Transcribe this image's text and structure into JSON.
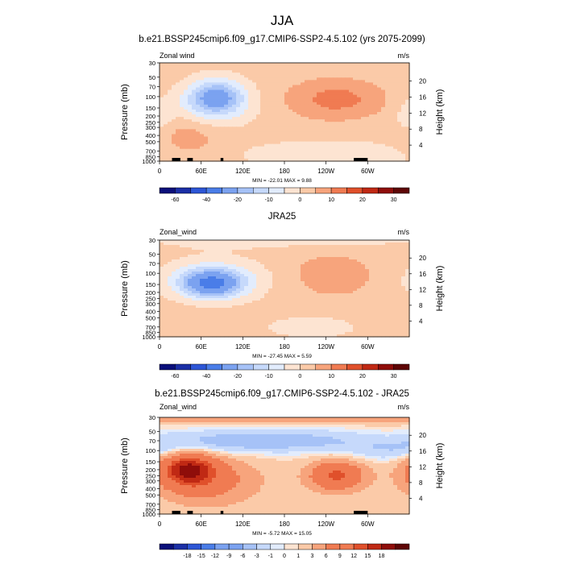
{
  "figure": {
    "title": "JJA"
  },
  "chart_data": [
    {
      "type": "heatmap",
      "title": "b.e21.BSSP245cmip6.f09_g17.CMIP6-SSP2-4.5.102 (yrs 2075-2099)",
      "left_label": "Zonal wind",
      "units": "m/s",
      "xlabel": "",
      "ylabel": "Pressure (mb)",
      "y2label": "Height (km)",
      "x_ticks": [
        "0",
        "60E",
        "120E",
        "180",
        "120W",
        "60W"
      ],
      "x_tick_values": [
        0,
        60,
        120,
        180,
        240,
        300
      ],
      "xlim": [
        0,
        360
      ],
      "y_ticks": [
        "30",
        "50",
        "70",
        "100",
        "150",
        "200",
        "250",
        "300",
        "400",
        "500",
        "700",
        "850",
        "1000"
      ],
      "y_tick_values": [
        30,
        50,
        70,
        100,
        150,
        200,
        250,
        300,
        400,
        500,
        700,
        850,
        1000
      ],
      "ylim": [
        1000,
        30
      ],
      "y_scale": "log",
      "y2_ticks": [
        "4",
        "8",
        "12",
        "16",
        "20"
      ],
      "stats": "MIN = -22.01  MAX =  9.88",
      "colorbar_levels": [
        -60,
        -50,
        -40,
        -30,
        -20,
        -15,
        -10,
        -5,
        0,
        5,
        10,
        15,
        20,
        25,
        30
      ],
      "colorbar_labels": [
        "-60",
        "-40",
        "-20",
        "-10",
        "0",
        "10",
        "20",
        "30"
      ],
      "features": [
        {
          "kind": "jet",
          "sign": "easterly",
          "lon": 82,
          "p": 100,
          "value": -22
        },
        {
          "kind": "jet",
          "sign": "westerly",
          "lon": 245,
          "p": 110,
          "value": 9.9
        }
      ]
    },
    {
      "type": "heatmap",
      "title": "JRA25",
      "left_label": "Zonal_wind",
      "units": "m/s",
      "xlabel": "",
      "ylabel": "Pressure (mb)",
      "y2label": "Height (km)",
      "x_ticks": [
        "0",
        "60E",
        "120E",
        "180",
        "120W",
        "60W"
      ],
      "x_tick_values": [
        0,
        60,
        120,
        180,
        240,
        300
      ],
      "xlim": [
        0,
        360
      ],
      "y_ticks": [
        "30",
        "50",
        "70",
        "100",
        "150",
        "200",
        "250",
        "300",
        "400",
        "500",
        "700",
        "850",
        "1000"
      ],
      "y_tick_values": [
        30,
        50,
        70,
        100,
        150,
        200,
        250,
        300,
        400,
        500,
        700,
        850,
        1000
      ],
      "ylim": [
        1000,
        30
      ],
      "y_scale": "log",
      "y2_ticks": [
        "4",
        "8",
        "12",
        "16",
        "20"
      ],
      "stats": "MIN = -27.45  MAX =  5.59",
      "colorbar_levels": [
        -60,
        -50,
        -40,
        -30,
        -20,
        -15,
        -10,
        -5,
        0,
        5,
        10,
        15,
        20,
        25,
        30
      ],
      "colorbar_labels": [
        "-60",
        "-40",
        "-20",
        "-10",
        "0",
        "10",
        "20",
        "30"
      ],
      "features": [
        {
          "kind": "jet",
          "sign": "easterly",
          "lon": 75,
          "p": 150,
          "value": -27
        }
      ]
    },
    {
      "type": "heatmap",
      "title": "b.e21.BSSP245cmip6.f09_g17.CMIP6-SSP2-4.5.102 - JRA25",
      "left_label": "Zonal_wind",
      "units": "m/s",
      "xlabel": "",
      "ylabel": "Pressure (mb)",
      "y2label": "Height (km)",
      "x_ticks": [
        "0",
        "60E",
        "120E",
        "180",
        "120W",
        "60W"
      ],
      "x_tick_values": [
        0,
        60,
        120,
        180,
        240,
        300
      ],
      "xlim": [
        0,
        360
      ],
      "y_ticks": [
        "30",
        "50",
        "70",
        "100",
        "150",
        "200",
        "250",
        "300",
        "400",
        "500",
        "700",
        "850",
        "1000"
      ],
      "y_tick_values": [
        30,
        50,
        70,
        100,
        150,
        200,
        250,
        300,
        400,
        500,
        700,
        850,
        1000
      ],
      "ylim": [
        1000,
        30
      ],
      "y_scale": "log",
      "y2_ticks": [
        "4",
        "8",
        "12",
        "16",
        "20"
      ],
      "stats": "MIN = -5.72  MAX = 15.05",
      "colorbar_levels": [
        -21,
        -18,
        -15,
        -12,
        -9,
        -6,
        -3,
        -1,
        0,
        1,
        3,
        6,
        9,
        12,
        15,
        18,
        21
      ],
      "colorbar_labels": [
        "-18",
        "-15",
        "-12",
        "-9",
        "-6",
        "-3",
        "-1",
        "0",
        "1",
        "3",
        "6",
        "9",
        "12",
        "15",
        "18"
      ],
      "features": [
        {
          "kind": "anomaly",
          "sign": "positive",
          "lon": 40,
          "p": 200,
          "value": 15
        },
        {
          "kind": "anomaly",
          "sign": "positive",
          "lon": 250,
          "p": 250,
          "value": 12
        },
        {
          "kind": "anomaly",
          "sign": "negative",
          "lon": 150,
          "p": 70,
          "value": -5.7
        }
      ]
    }
  ],
  "colors": {
    "diverging": [
      "#0a0f7a",
      "#1b2fa6",
      "#2d56d6",
      "#4a7de8",
      "#7ba2f0",
      "#a6c2f7",
      "#c6d9fb",
      "#e2ecfd",
      "#fde4d2",
      "#fbcaa8",
      "#f7a47c",
      "#f07b52",
      "#e0502b",
      "#c02914",
      "#8f0d0a",
      "#5e0505"
    ]
  }
}
